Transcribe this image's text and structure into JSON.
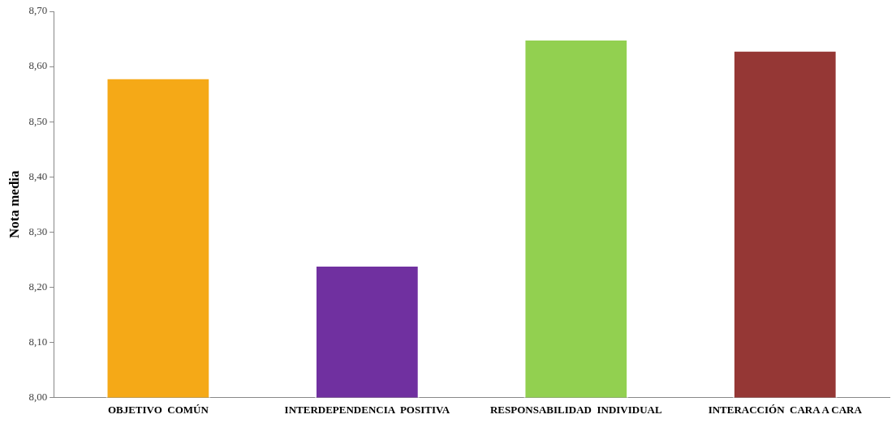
{
  "chart_data": {
    "type": "bar",
    "ylabel": "Nota media",
    "categories": [
      "OBJETIVO  COMÚN",
      "INTERDEPENDENCIA  POSITIVA",
      "RESPONSABILIDAD  INDIVIDUAL",
      "INTERACCIÓN  CARA A CARA"
    ],
    "values": [
      8.58,
      8.24,
      8.65,
      8.63
    ],
    "colors": [
      "#f5a917",
      "#7030a0",
      "#92d050",
      "#953735"
    ],
    "ylim": [
      8.0,
      8.7
    ],
    "yticks": [
      {
        "value": 8.0,
        "label": "8,00"
      },
      {
        "value": 8.1,
        "label": "8,10"
      },
      {
        "value": 8.2,
        "label": "8,20"
      },
      {
        "value": 8.3,
        "label": "8,30"
      },
      {
        "value": 8.4,
        "label": "8,40"
      },
      {
        "value": 8.5,
        "label": "8,50"
      },
      {
        "value": 8.6,
        "label": "8,60"
      },
      {
        "value": 8.7,
        "label": "8,70"
      }
    ],
    "grid": false,
    "legend": false
  }
}
